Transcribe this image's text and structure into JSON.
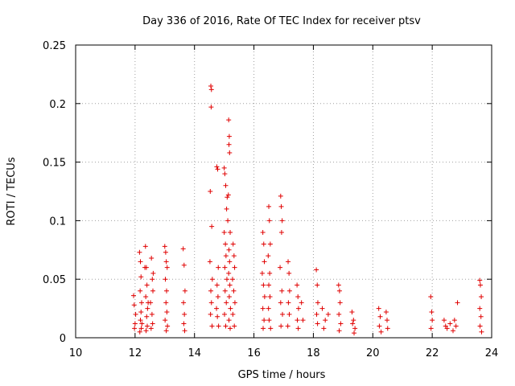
{
  "chart_data": {
    "type": "scatter",
    "title": "Day 336 of 2016, Rate Of TEC Index for receiver ptsv",
    "xlabel": "GPS time / hours",
    "ylabel": "ROTI / TECUs",
    "xlim": [
      10,
      24
    ],
    "ylim": [
      0,
      0.25
    ],
    "x_ticks": [
      10,
      12,
      14,
      16,
      18,
      20,
      22,
      24
    ],
    "x_tick_labels": [
      "10",
      "12",
      "14",
      "16",
      "18",
      "20",
      "22",
      "24"
    ],
    "y_ticks": [
      0,
      0.05,
      0.1,
      0.15,
      0.2,
      0.25
    ],
    "y_tick_labels": [
      "0",
      "0.05",
      "0.1",
      "0.15",
      "0.2",
      "0.25"
    ],
    "grid": true,
    "marker": "plus",
    "color": "#e00000",
    "series": [
      {
        "name": "ROTI",
        "points": [
          [
            11.95,
            0.036
          ],
          [
            11.97,
            0.028
          ],
          [
            12.0,
            0.012
          ],
          [
            11.98,
            0.008
          ],
          [
            12.02,
            0.02
          ],
          [
            12.15,
            0.073
          ],
          [
            12.18,
            0.065
          ],
          [
            12.2,
            0.052
          ],
          [
            12.17,
            0.04
          ],
          [
            12.22,
            0.03
          ],
          [
            12.2,
            0.022
          ],
          [
            12.18,
            0.015
          ],
          [
            12.21,
            0.008
          ],
          [
            12.16,
            0.005
          ],
          [
            12.23,
            0.012
          ],
          [
            12.35,
            0.078
          ],
          [
            12.38,
            0.06
          ],
          [
            12.4,
            0.045
          ],
          [
            12.36,
            0.035
          ],
          [
            12.42,
            0.025
          ],
          [
            12.39,
            0.018
          ],
          [
            12.41,
            0.01
          ],
          [
            12.37,
            0.006
          ],
          [
            12.33,
            0.06
          ],
          [
            12.44,
            0.03
          ],
          [
            12.55,
            0.068
          ],
          [
            12.58,
            0.05
          ],
          [
            12.6,
            0.04
          ],
          [
            12.52,
            0.03
          ],
          [
            12.57,
            0.02
          ],
          [
            12.59,
            0.012
          ],
          [
            12.54,
            0.008
          ],
          [
            12.61,
            0.055
          ],
          [
            13.0,
            0.078
          ],
          [
            13.03,
            0.073
          ],
          [
            13.05,
            0.065
          ],
          [
            13.08,
            0.06
          ],
          [
            13.02,
            0.05
          ],
          [
            13.06,
            0.04
          ],
          [
            13.04,
            0.03
          ],
          [
            13.07,
            0.022
          ],
          [
            13.01,
            0.015
          ],
          [
            13.09,
            0.01
          ],
          [
            13.05,
            0.006
          ],
          [
            13.62,
            0.076
          ],
          [
            13.65,
            0.062
          ],
          [
            13.68,
            0.04
          ],
          [
            13.63,
            0.03
          ],
          [
            13.66,
            0.02
          ],
          [
            13.64,
            0.012
          ],
          [
            13.67,
            0.006
          ],
          [
            14.55,
            0.215
          ],
          [
            14.57,
            0.212
          ],
          [
            14.56,
            0.197
          ],
          [
            14.53,
            0.125
          ],
          [
            14.58,
            0.095
          ],
          [
            14.52,
            0.065
          ],
          [
            14.6,
            0.05
          ],
          [
            14.55,
            0.04
          ],
          [
            14.57,
            0.03
          ],
          [
            14.54,
            0.02
          ],
          [
            14.59,
            0.01
          ],
          [
            14.75,
            0.146
          ],
          [
            14.78,
            0.144
          ],
          [
            14.8,
            0.06
          ],
          [
            14.76,
            0.045
          ],
          [
            14.79,
            0.035
          ],
          [
            14.74,
            0.025
          ],
          [
            14.77,
            0.018
          ],
          [
            14.81,
            0.01
          ],
          [
            15.0,
            0.145
          ],
          [
            15.02,
            0.14
          ],
          [
            15.05,
            0.13
          ],
          [
            15.1,
            0.12
          ],
          [
            15.08,
            0.11
          ],
          [
            15.12,
            0.1
          ],
          [
            15.0,
            0.09
          ],
          [
            15.04,
            0.08
          ],
          [
            15.06,
            0.07
          ],
          [
            15.02,
            0.06
          ],
          [
            15.09,
            0.05
          ],
          [
            15.03,
            0.04
          ],
          [
            15.07,
            0.03
          ],
          [
            15.01,
            0.02
          ],
          [
            15.05,
            0.01
          ],
          [
            15.15,
            0.186
          ],
          [
            15.17,
            0.172
          ],
          [
            15.16,
            0.165
          ],
          [
            15.18,
            0.158
          ],
          [
            15.14,
            0.122
          ],
          [
            15.2,
            0.09
          ],
          [
            15.16,
            0.075
          ],
          [
            15.18,
            0.065
          ],
          [
            15.15,
            0.055
          ],
          [
            15.19,
            0.045
          ],
          [
            15.17,
            0.035
          ],
          [
            15.21,
            0.025
          ],
          [
            15.16,
            0.015
          ],
          [
            15.2,
            0.008
          ],
          [
            15.3,
            0.08
          ],
          [
            15.33,
            0.07
          ],
          [
            15.35,
            0.06
          ],
          [
            15.28,
            0.05
          ],
          [
            15.32,
            0.04
          ],
          [
            15.36,
            0.03
          ],
          [
            15.29,
            0.02
          ],
          [
            15.34,
            0.01
          ],
          [
            16.3,
            0.09
          ],
          [
            16.33,
            0.08
          ],
          [
            16.35,
            0.065
          ],
          [
            16.28,
            0.055
          ],
          [
            16.32,
            0.045
          ],
          [
            16.36,
            0.035
          ],
          [
            16.3,
            0.025
          ],
          [
            16.34,
            0.015
          ],
          [
            16.31,
            0.008
          ],
          [
            16.5,
            0.112
          ],
          [
            16.52,
            0.1
          ],
          [
            16.55,
            0.08
          ],
          [
            16.48,
            0.07
          ],
          [
            16.53,
            0.055
          ],
          [
            16.5,
            0.045
          ],
          [
            16.54,
            0.035
          ],
          [
            16.49,
            0.025
          ],
          [
            16.51,
            0.015
          ],
          [
            16.56,
            0.008
          ],
          [
            16.9,
            0.121
          ],
          [
            16.92,
            0.112
          ],
          [
            16.95,
            0.1
          ],
          [
            16.93,
            0.09
          ],
          [
            16.88,
            0.06
          ],
          [
            16.94,
            0.04
          ],
          [
            16.9,
            0.03
          ],
          [
            16.96,
            0.02
          ],
          [
            16.91,
            0.01
          ],
          [
            17.15,
            0.065
          ],
          [
            17.18,
            0.055
          ],
          [
            17.2,
            0.04
          ],
          [
            17.16,
            0.03
          ],
          [
            17.19,
            0.02
          ],
          [
            17.14,
            0.01
          ],
          [
            17.45,
            0.045
          ],
          [
            17.48,
            0.035
          ],
          [
            17.5,
            0.025
          ],
          [
            17.46,
            0.015
          ],
          [
            17.49,
            0.008
          ],
          [
            17.6,
            0.03
          ],
          [
            17.65,
            0.015
          ],
          [
            18.1,
            0.058
          ],
          [
            18.13,
            0.045
          ],
          [
            18.15,
            0.03
          ],
          [
            18.11,
            0.02
          ],
          [
            18.14,
            0.012
          ],
          [
            18.3,
            0.025
          ],
          [
            18.4,
            0.015
          ],
          [
            18.5,
            0.02
          ],
          [
            18.35,
            0.008
          ],
          [
            18.85,
            0.045
          ],
          [
            18.88,
            0.04
          ],
          [
            18.9,
            0.03
          ],
          [
            18.86,
            0.02
          ],
          [
            18.92,
            0.012
          ],
          [
            18.87,
            0.006
          ],
          [
            19.3,
            0.022
          ],
          [
            19.35,
            0.015
          ],
          [
            19.4,
            0.008
          ],
          [
            19.32,
            0.012
          ],
          [
            19.37,
            0.004
          ],
          [
            20.2,
            0.025
          ],
          [
            20.25,
            0.018
          ],
          [
            20.22,
            0.01
          ],
          [
            20.28,
            0.005
          ],
          [
            20.45,
            0.022
          ],
          [
            20.48,
            0.015
          ],
          [
            20.5,
            0.008
          ],
          [
            21.95,
            0.035
          ],
          [
            21.98,
            0.022
          ],
          [
            22.0,
            0.015
          ],
          [
            21.96,
            0.008
          ],
          [
            22.4,
            0.015
          ],
          [
            22.45,
            0.01
          ],
          [
            22.5,
            0.008
          ],
          [
            22.6,
            0.012
          ],
          [
            22.7,
            0.006
          ],
          [
            22.8,
            0.01
          ],
          [
            22.85,
            0.03
          ],
          [
            22.75,
            0.015
          ],
          [
            23.6,
            0.049
          ],
          [
            23.62,
            0.045
          ],
          [
            23.65,
            0.035
          ],
          [
            23.6,
            0.025
          ],
          [
            23.64,
            0.018
          ],
          [
            23.61,
            0.01
          ],
          [
            23.66,
            0.005
          ]
        ]
      }
    ]
  }
}
